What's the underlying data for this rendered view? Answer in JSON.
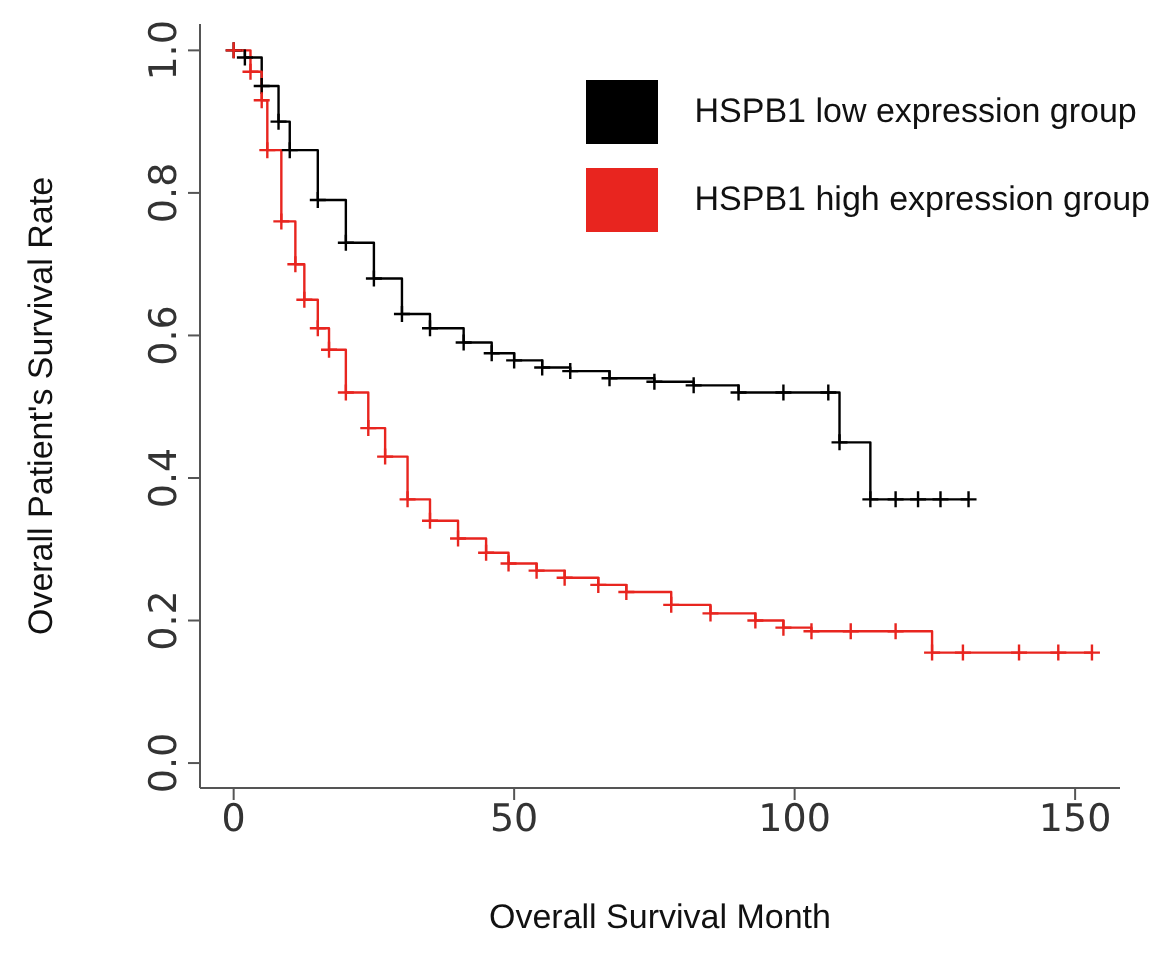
{
  "chart_data": {
    "type": "step",
    "xlabel": "Overall Survival Month",
    "ylabel": "Overall Patient's Survival Rate",
    "xlim": [
      -6,
      158
    ],
    "xticks": [
      0,
      50,
      100,
      150
    ],
    "ylim": [
      -0.035,
      1.037
    ],
    "yticks": [
      {
        "value": 0,
        "label": "0.0"
      },
      {
        "value": 0.2,
        "label": "0.2"
      },
      {
        "value": 0.4,
        "label": "0.4"
      },
      {
        "value": 0.6,
        "label": "0.6"
      },
      {
        "value": 0.8,
        "label": "0.8"
      },
      {
        "value": 1,
        "label": "1.0"
      }
    ],
    "legend": "top right",
    "marker": "cross",
    "line_style": "solid",
    "series": [
      {
        "name": "HSPB1 low expression group",
        "color": "#000000",
        "x": [
          0,
          2,
          5,
          8,
          10,
          15,
          20,
          25,
          30,
          35,
          41,
          46,
          50,
          55,
          60,
          67,
          75,
          82,
          90,
          98,
          106,
          108,
          113.5,
          118,
          122,
          126,
          131
        ],
        "values": [
          1,
          0.99,
          0.95,
          0.9,
          0.86,
          0.79,
          0.73,
          0.68,
          0.63,
          0.61,
          0.59,
          0.575,
          0.565,
          0.555,
          0.55,
          0.54,
          0.535,
          0.53,
          0.52,
          0.52,
          0.52,
          0.45,
          0.37,
          0.37,
          0.37,
          0.37,
          0.37
        ]
      },
      {
        "name": "HSPB1 high expression group",
        "color": "#e8251f",
        "x": [
          0,
          3,
          5,
          6,
          8.5,
          11,
          12.6,
          15,
          17,
          20,
          24,
          27,
          31,
          35,
          40,
          45,
          49,
          54,
          59,
          65,
          70,
          78,
          85,
          93,
          98,
          103,
          110,
          118,
          124.5,
          130,
          140,
          147,
          153
        ],
        "values": [
          1,
          0.97,
          0.93,
          0.86,
          0.76,
          0.7,
          0.65,
          0.61,
          0.58,
          0.52,
          0.47,
          0.43,
          0.37,
          0.34,
          0.315,
          0.295,
          0.28,
          0.27,
          0.26,
          0.25,
          0.24,
          0.222,
          0.21,
          0.2,
          0.19,
          0.185,
          0.185,
          0.185,
          0.155,
          0.155,
          0.155,
          0.155,
          0.155
        ]
      }
    ]
  }
}
